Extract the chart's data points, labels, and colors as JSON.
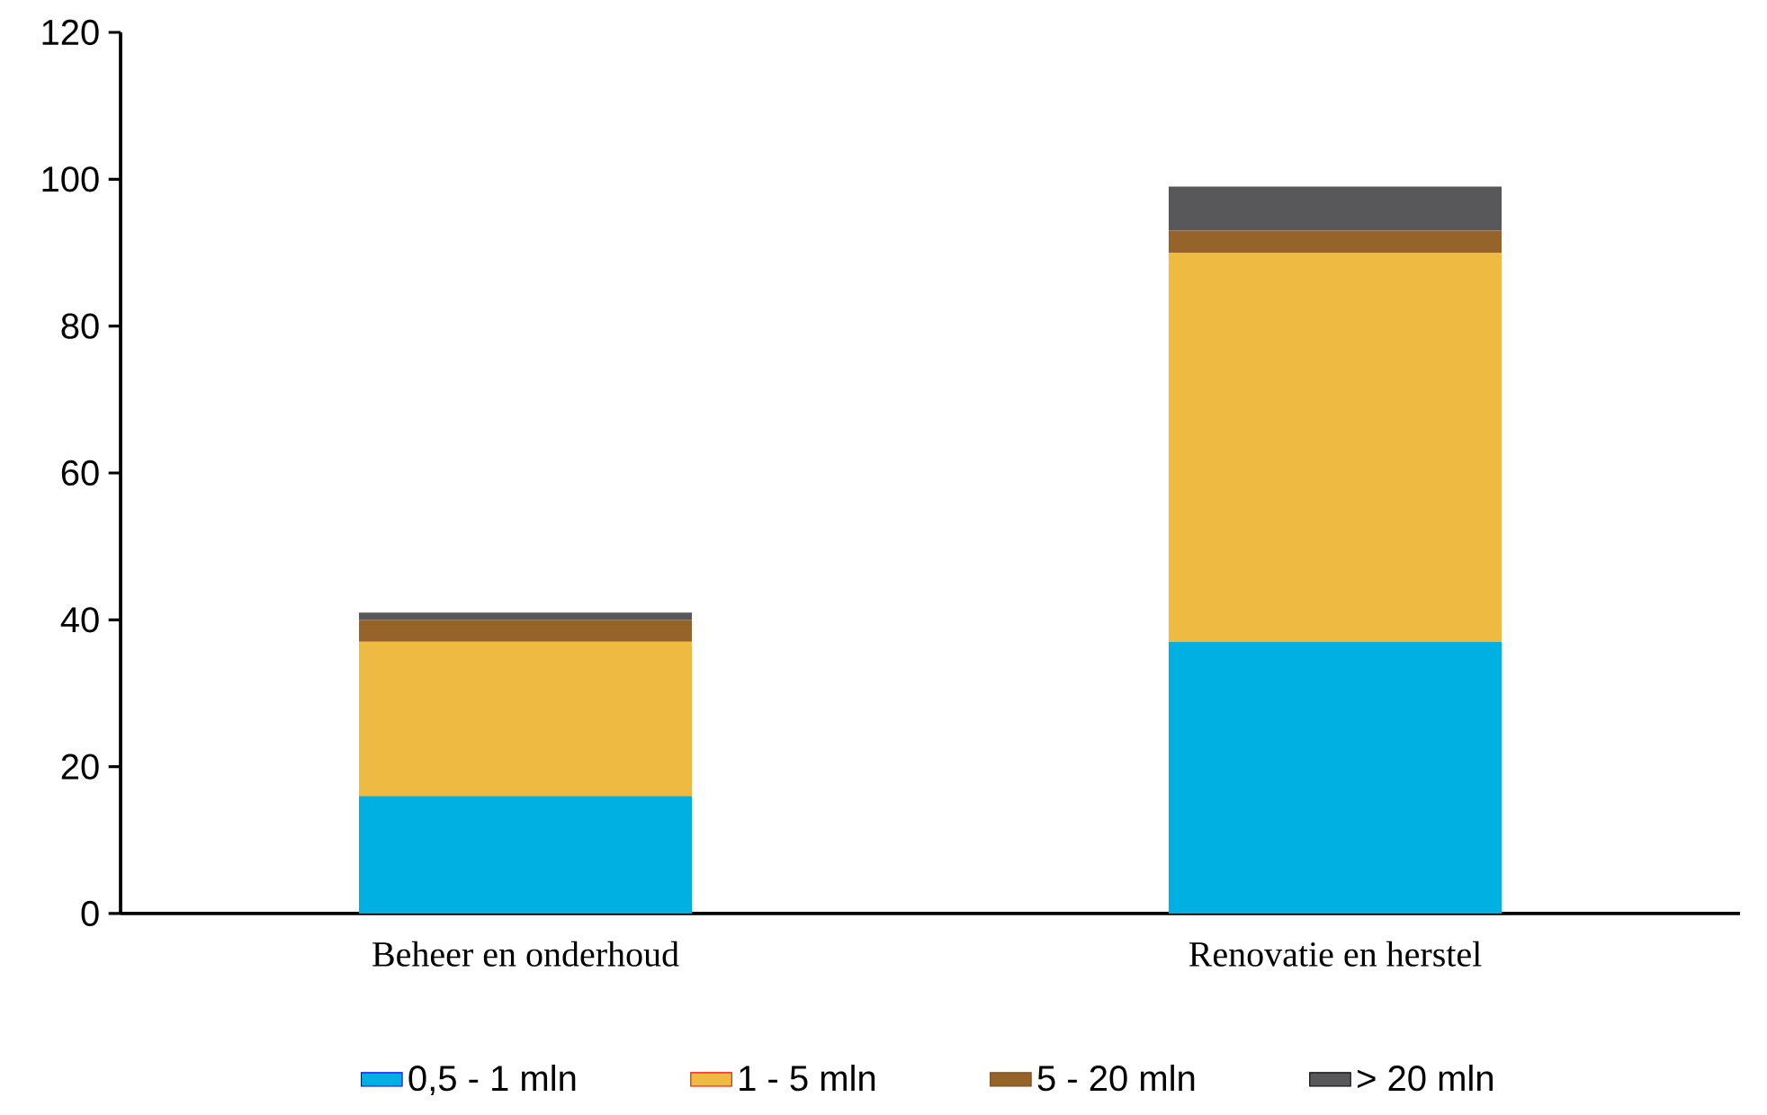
{
  "chart_data": {
    "type": "bar",
    "stacked": true,
    "categories": [
      "Beheer en onderhoud",
      "Renovatie en herstel"
    ],
    "series": [
      {
        "name": "0,5 - 1 mln",
        "color": "#00b0e2",
        "values": [
          16,
          37
        ]
      },
      {
        "name": "1 - 5 mln",
        "color": "#eeba42",
        "values": [
          21,
          53
        ]
      },
      {
        "name": "5 - 20 mln",
        "color": "#96642a",
        "values": [
          3,
          3
        ]
      },
      {
        "name": "> 20 mln",
        "color": "#58585a",
        "values": [
          1,
          6
        ]
      }
    ],
    "ylim": [
      0,
      120
    ],
    "yticks": [
      0,
      20,
      40,
      60,
      80,
      100,
      120
    ],
    "legend": "bottom"
  }
}
